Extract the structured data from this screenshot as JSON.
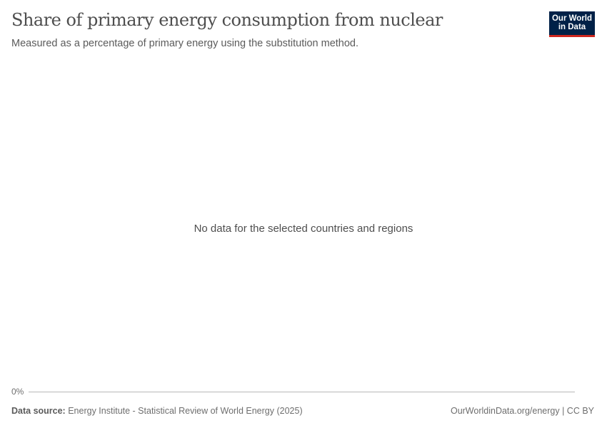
{
  "header": {
    "title": "Share of primary energy consumption from nuclear",
    "subtitle": "Measured as a percentage of primary energy using the substitution method.",
    "logo_text": "Our World in Data"
  },
  "chart_data": {
    "type": "line",
    "title": "Share of primary energy consumption from nuclear",
    "subtitle": "Measured as a percentage of primary energy using the substitution method.",
    "y_tick_labels": [
      "0%"
    ],
    "series": [],
    "message": "No data for the selected countries and regions"
  },
  "footer": {
    "source_label": "Data source:",
    "source_text": "Energy Institute - Statistical Review of World Energy (2025)",
    "link": "OurWorldinData.org/energy",
    "license": "CC BY"
  },
  "colors": {
    "logo_bg": "#002147",
    "logo_accent": "#ce261e"
  }
}
